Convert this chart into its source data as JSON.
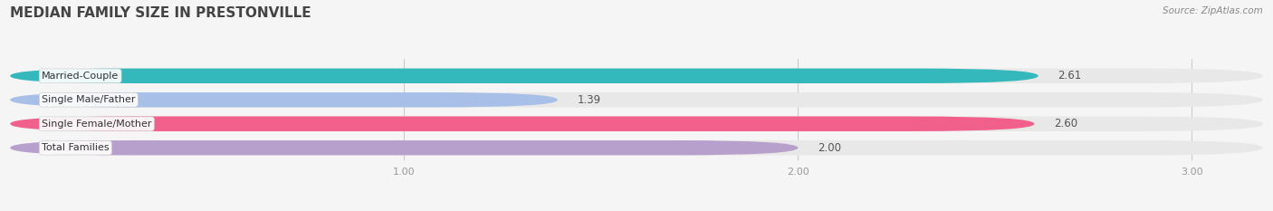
{
  "title": "Median Family Size in Prestonville",
  "source": "Source: ZipAtlas.com",
  "categories": [
    "Married-Couple",
    "Single Male/Father",
    "Single Female/Mother",
    "Total Families"
  ],
  "values": [
    2.61,
    1.39,
    2.6,
    2.0
  ],
  "bar_colors": [
    "#35b8bc",
    "#a8bfe8",
    "#f0608a",
    "#b8a0cc"
  ],
  "bar_bg_color": "#e8e8e8",
  "value_colors": [
    "#ffffff",
    "#555555",
    "#ffffff",
    "#555555"
  ],
  "xlim": [
    0,
    3.18
  ],
  "xticks": [
    1.0,
    2.0,
    3.0
  ],
  "background_color": "#f5f5f5",
  "title_fontsize": 11,
  "label_fontsize": 8,
  "value_fontsize": 8.5,
  "bar_height": 0.62,
  "bar_gap": 1.0,
  "source_fontsize": 7.5
}
